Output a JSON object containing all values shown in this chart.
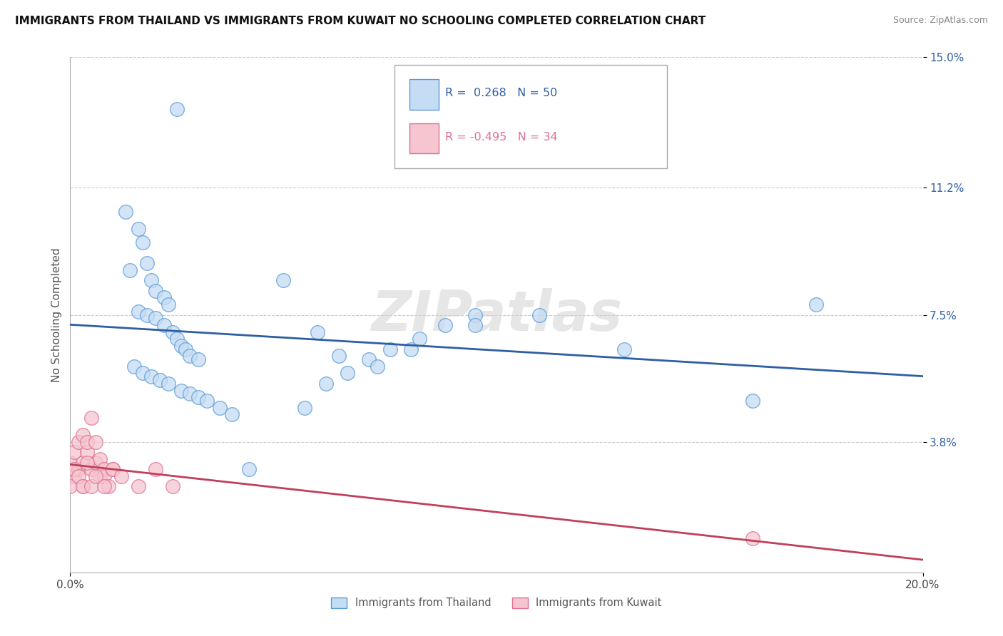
{
  "title": "IMMIGRANTS FROM THAILAND VS IMMIGRANTS FROM KUWAIT NO SCHOOLING COMPLETED CORRELATION CHART",
  "source": "Source: ZipAtlas.com",
  "ylabel": "No Schooling Completed",
  "xlim": [
    0.0,
    0.2
  ],
  "ylim": [
    0.0,
    0.15
  ],
  "xtick_positions": [
    0.0,
    0.2
  ],
  "xtick_labels": [
    "0.0%",
    "20.0%"
  ],
  "ytick_values": [
    0.038,
    0.075,
    0.112,
    0.15
  ],
  "ytick_labels": [
    "3.8%",
    "7.5%",
    "11.2%",
    "15.0%"
  ],
  "r_thailand": 0.268,
  "n_thailand": 50,
  "r_kuwait": -0.495,
  "n_kuwait": 34,
  "color_thailand_fill": "#c5dcf5",
  "color_thailand_edge": "#5b9bd5",
  "color_kuwait_fill": "#f5c5d0",
  "color_kuwait_edge": "#e07090",
  "color_line_thailand": "#2e5fa3",
  "color_line_kuwait": "#c0405a",
  "watermark": "ZIPatlas",
  "thailand_x": [
    0.025,
    0.013,
    0.016,
    0.017,
    0.018,
    0.014,
    0.019,
    0.02,
    0.022,
    0.023,
    0.016,
    0.018,
    0.02,
    0.022,
    0.024,
    0.025,
    0.026,
    0.027,
    0.028,
    0.03,
    0.015,
    0.017,
    0.019,
    0.021,
    0.023,
    0.026,
    0.028,
    0.03,
    0.032,
    0.035,
    0.038,
    0.042,
    0.055,
    0.06,
    0.065,
    0.07,
    0.075,
    0.082,
    0.088,
    0.095,
    0.05,
    0.058,
    0.063,
    0.072,
    0.08,
    0.095,
    0.11,
    0.13,
    0.16,
    0.175
  ],
  "thailand_y": [
    0.135,
    0.105,
    0.1,
    0.096,
    0.09,
    0.088,
    0.085,
    0.082,
    0.08,
    0.078,
    0.076,
    0.075,
    0.074,
    0.072,
    0.07,
    0.068,
    0.066,
    0.065,
    0.063,
    0.062,
    0.06,
    0.058,
    0.057,
    0.056,
    0.055,
    0.053,
    0.052,
    0.051,
    0.05,
    0.048,
    0.046,
    0.03,
    0.048,
    0.055,
    0.058,
    0.062,
    0.065,
    0.068,
    0.072,
    0.075,
    0.085,
    0.07,
    0.063,
    0.06,
    0.065,
    0.072,
    0.075,
    0.065,
    0.05,
    0.078
  ],
  "kuwait_x": [
    0.0,
    0.001,
    0.001,
    0.002,
    0.002,
    0.003,
    0.003,
    0.003,
    0.004,
    0.004,
    0.005,
    0.005,
    0.006,
    0.006,
    0.007,
    0.007,
    0.008,
    0.008,
    0.009,
    0.01,
    0.0,
    0.001,
    0.002,
    0.003,
    0.004,
    0.005,
    0.006,
    0.008,
    0.01,
    0.012,
    0.016,
    0.02,
    0.024,
    0.16
  ],
  "kuwait_y": [
    0.032,
    0.028,
    0.035,
    0.03,
    0.038,
    0.025,
    0.032,
    0.04,
    0.035,
    0.038,
    0.03,
    0.045,
    0.032,
    0.038,
    0.028,
    0.033,
    0.03,
    0.028,
    0.025,
    0.03,
    0.025,
    0.03,
    0.028,
    0.025,
    0.032,
    0.025,
    0.028,
    0.025,
    0.03,
    0.028,
    0.025,
    0.03,
    0.025,
    0.01
  ]
}
